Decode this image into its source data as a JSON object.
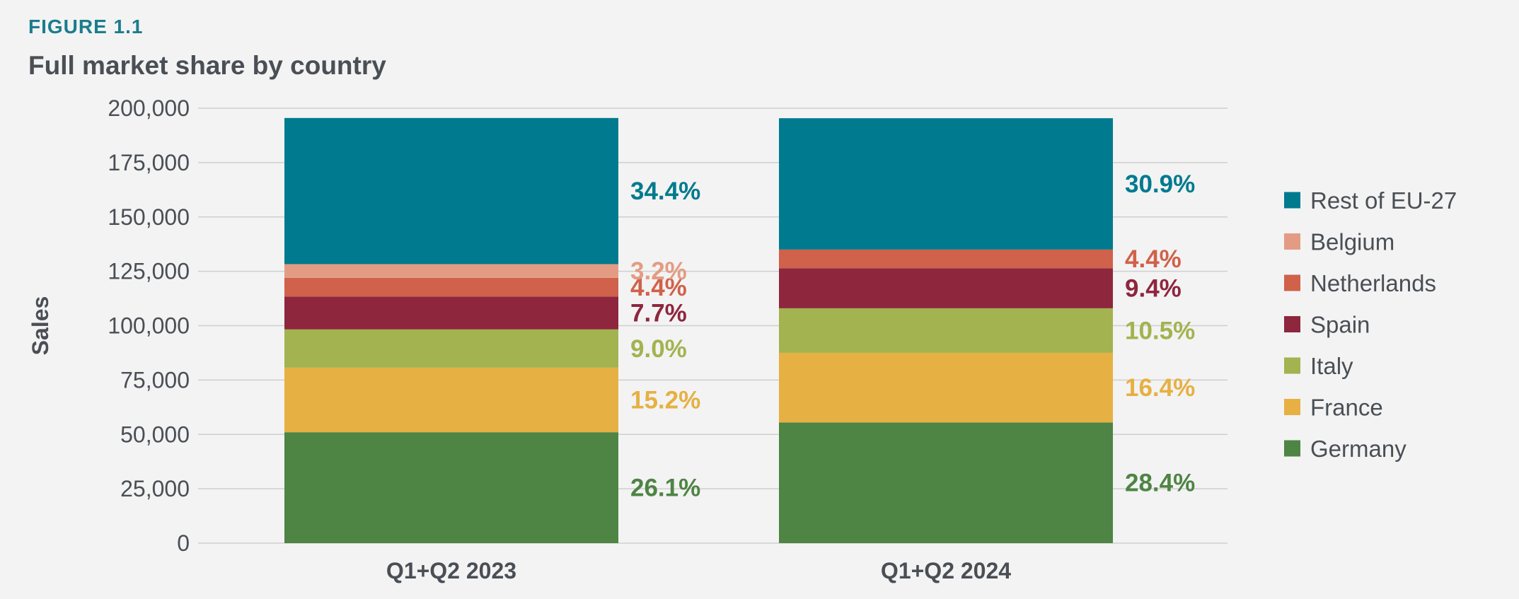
{
  "figure_label": "FIGURE 1.1",
  "chart_data": {
    "type": "bar",
    "stacked": true,
    "title": "Full market share by country",
    "ylabel": "Sales",
    "xlabel": "",
    "categories": [
      "Q1+Q2 2023",
      "Q1+Q2 2024"
    ],
    "ylim": [
      0,
      200000
    ],
    "yticks": [
      0,
      25000,
      50000,
      75000,
      100000,
      125000,
      150000,
      175000,
      200000
    ],
    "ytick_labels": [
      "0",
      "25,000",
      "50,000",
      "75,000",
      "100,000",
      "125,000",
      "150,000",
      "175,000",
      "200,000"
    ],
    "grid": true,
    "legend_position": "right",
    "series": [
      {
        "name": "Germany",
        "color": "#4e8444",
        "values": [
          51000,
          55500
        ],
        "labels": [
          "26.1%",
          "28.4%"
        ]
      },
      {
        "name": "France",
        "color": "#e6b042",
        "values": [
          29700,
          32000
        ],
        "labels": [
          "15.2%",
          "16.4%"
        ]
      },
      {
        "name": "Italy",
        "color": "#a2b34f",
        "values": [
          17600,
          20500
        ],
        "labels": [
          "9.0%",
          "10.5%"
        ]
      },
      {
        "name": "Spain",
        "color": "#8e263e",
        "values": [
          15100,
          18400
        ],
        "labels": [
          "7.7%",
          "9.4%"
        ]
      },
      {
        "name": "Netherlands",
        "color": "#d0614a",
        "values": [
          8600,
          8600
        ],
        "labels": [
          "4.4%",
          "4.4%"
        ]
      },
      {
        "name": "Belgium",
        "color": "#e39c83",
        "values": [
          6300,
          0
        ],
        "labels": [
          "3.2%",
          ""
        ]
      },
      {
        "name": "Rest of EU-27",
        "color": "#007a8f",
        "values": [
          67200,
          60400
        ],
        "labels": [
          "34.4%",
          "30.9%"
        ]
      }
    ],
    "legend_order": [
      "Rest of EU-27",
      "Belgium",
      "Netherlands",
      "Spain",
      "Italy",
      "France",
      "Germany"
    ]
  }
}
